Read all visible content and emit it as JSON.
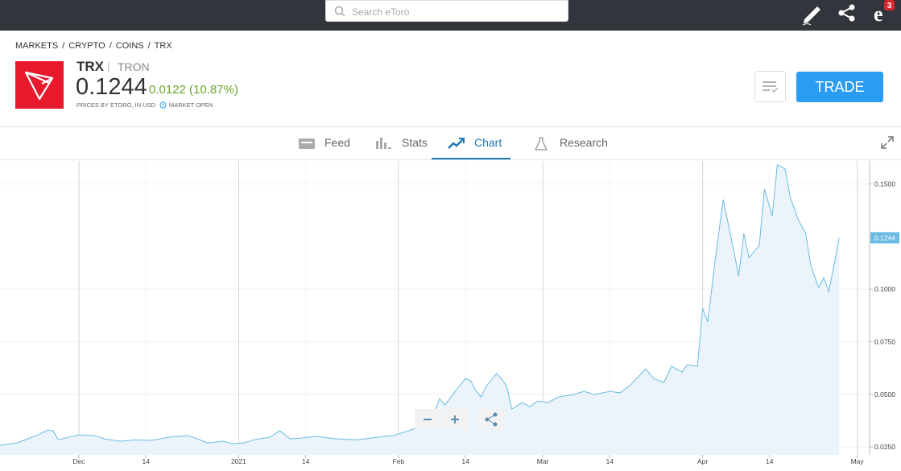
{
  "topbar": {
    "search_placeholder": "Search eToro",
    "notification_count": "3"
  },
  "header": {
    "breadcrumb": [
      "MARKETS",
      "CRYPTO",
      "COINS",
      "TRX"
    ],
    "symbol": "TRX",
    "name": "TRON",
    "price": "0.1244",
    "change": "0.0122 (10.87%)",
    "prices_note": "PRICES BY ETORO, IN USD",
    "market_status": "MARKET OPEN",
    "trade_button": "TRADE"
  },
  "tabs": [
    "Feed",
    "Stats",
    "Chart",
    "Research"
  ],
  "active_tab": "Chart",
  "chart_data": {
    "type": "area",
    "color": "#6bbbe3",
    "fill": "#eaf4fa",
    "grid": true,
    "x": [
      -15.3,
      -12,
      -10,
      -8,
      -6,
      -5,
      -4,
      -2,
      0,
      3,
      5,
      8,
      11,
      14,
      17.5,
      21,
      23,
      25,
      28,
      30,
      32,
      34,
      37,
      39,
      41,
      43,
      46,
      50,
      54,
      58,
      61,
      64,
      66,
      68,
      70,
      71,
      73,
      75,
      76,
      77,
      78,
      79,
      81,
      82,
      83,
      84,
      86,
      87.5,
      89,
      91,
      93,
      96,
      98,
      100,
      103,
      105,
      107,
      110,
      111.5,
      113.5,
      115,
      117,
      118,
      120,
      121,
      122,
      123.5,
      125,
      127,
      128,
      129,
      130,
      132,
      133,
      134.5,
      135.5,
      137,
      138,
      139.5,
      141,
      142,
      143.5,
      144.5,
      145.5,
      147.5
    ],
    "values": [
      0.0258,
      0.0269,
      0.0288,
      0.0307,
      0.033,
      0.0327,
      0.0284,
      0.0296,
      0.0307,
      0.0304,
      0.0288,
      0.0277,
      0.0284,
      0.0281,
      0.0296,
      0.0304,
      0.0288,
      0.0269,
      0.0277,
      0.0265,
      0.0269,
      0.0284,
      0.0296,
      0.0327,
      0.0288,
      0.0292,
      0.03,
      0.0288,
      0.0284,
      0.0296,
      0.0304,
      0.0327,
      0.0346,
      0.0353,
      0.048,
      0.0449,
      0.0514,
      0.0575,
      0.0564,
      0.0518,
      0.0487,
      0.0537,
      0.0598,
      0.0575,
      0.0537,
      0.043,
      0.0461,
      0.0441,
      0.0468,
      0.0461,
      0.0487,
      0.0499,
      0.0514,
      0.0499,
      0.0514,
      0.0507,
      0.0545,
      0.0621,
      0.0575,
      0.0556,
      0.0633,
      0.0606,
      0.0641,
      0.0633,
      0.0909,
      0.0844,
      0.115,
      0.1426,
      0.1188,
      0.1062,
      0.1265,
      0.115,
      0.1208,
      0.1476,
      0.1349,
      0.1591,
      0.1572,
      0.1438,
      0.1334,
      0.1265,
      0.1112,
      0.1008,
      0.1054,
      0.0989,
      0.1244
    ],
    "xlim": [
      -15.3,
      153.4
    ],
    "xticks": [
      {
        "value": 0,
        "label": "Dec"
      },
      {
        "value": 13,
        "label": "14"
      },
      {
        "value": 31,
        "label": "2021"
      },
      {
        "value": 44,
        "label": "14"
      },
      {
        "value": 62,
        "label": "Feb"
      },
      {
        "value": 75,
        "label": "14"
      },
      {
        "value": 90,
        "label": "Mar"
      },
      {
        "value": 103,
        "label": "14"
      },
      {
        "value": 121,
        "label": "Apr"
      },
      {
        "value": 134,
        "label": "14"
      },
      {
        "value": 151,
        "label": "May"
      }
    ],
    "ylim": [
      0.0212,
      0.1609
    ],
    "yticks": [
      {
        "value": 0.025,
        "label": "0.0250"
      },
      {
        "value": 0.05,
        "label": "0.0500"
      },
      {
        "value": 0.075,
        "label": "0.0750"
      },
      {
        "value": 0.1,
        "label": "0.1000"
      },
      {
        "value": 0.15,
        "label": "0.1500"
      }
    ]
  }
}
